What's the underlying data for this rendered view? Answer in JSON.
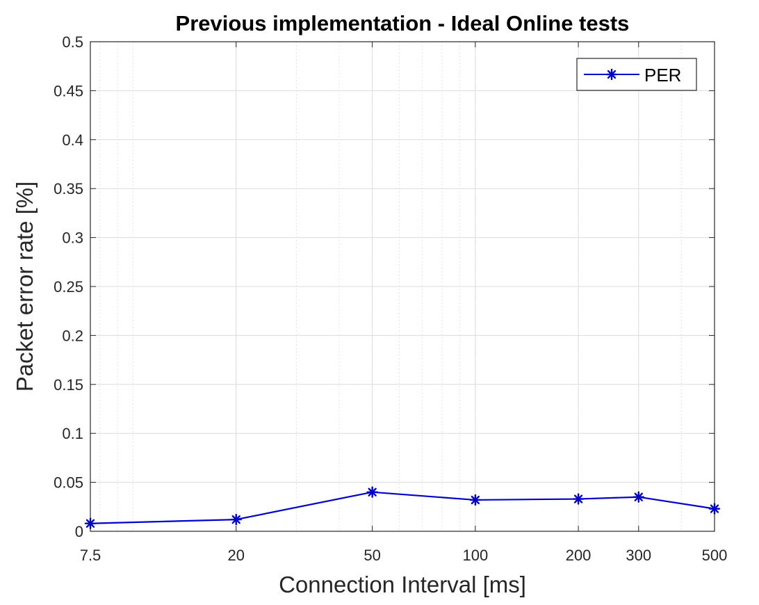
{
  "chart_data": {
    "type": "line",
    "title": "Previous implementation - Ideal Online tests",
    "xlabel": "Connection Interval [ms]",
    "ylabel": "Packet error rate [%]",
    "x_scale": "log",
    "xlim": [
      7.5,
      500
    ],
    "ylim": [
      0,
      0.5
    ],
    "x_ticks": [
      7.5,
      20,
      50,
      100,
      200,
      300,
      500
    ],
    "x_tick_labels": [
      "7.5",
      "20",
      "50",
      "100",
      "200",
      "300",
      "500"
    ],
    "y_ticks": [
      0,
      0.05,
      0.1,
      0.15,
      0.2,
      0.25,
      0.3,
      0.35,
      0.4,
      0.45,
      0.5
    ],
    "y_tick_labels": [
      "0",
      "0.05",
      "0.1",
      "0.15",
      "0.2",
      "0.25",
      "0.3",
      "0.35",
      "0.4",
      "0.45",
      "0.5"
    ],
    "grid": true,
    "minor_grid": true,
    "legend_position": "top-right",
    "series": [
      {
        "name": "PER",
        "color": "#0000cc",
        "marker": "asterisk",
        "x": [
          7.5,
          20,
          50,
          100,
          200,
          300,
          500
        ],
        "y": [
          0.008,
          0.012,
          0.04,
          0.032,
          0.033,
          0.035,
          0.023
        ]
      }
    ]
  }
}
